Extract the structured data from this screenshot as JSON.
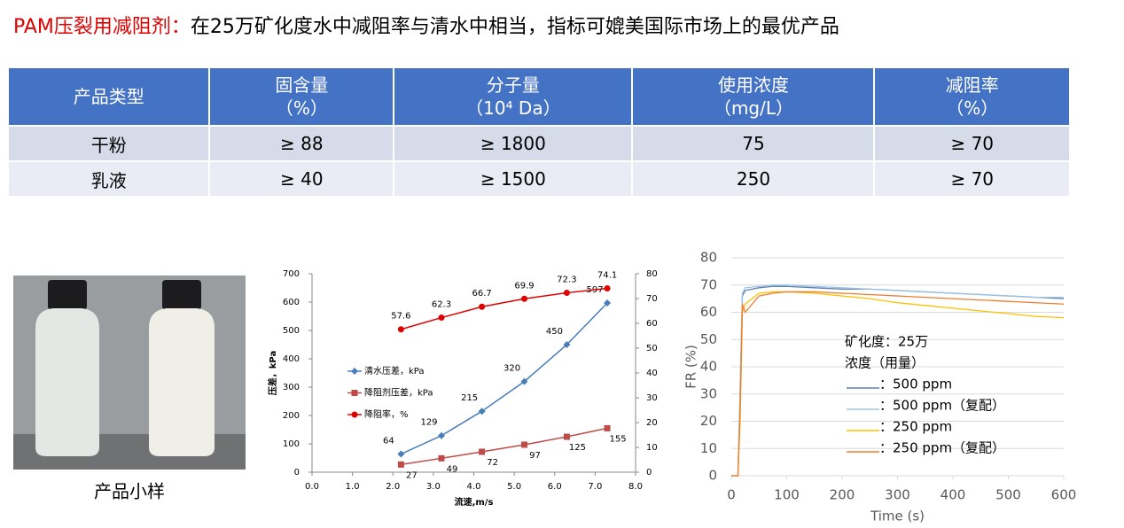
{
  "title": {
    "highlight": "PAM压裂用减阻剂：",
    "text": "在25万矿化度水中减阻率与清水中相当，指标可媲美国际市场上的最优产品"
  },
  "table": {
    "header": [
      [
        "产品类型"
      ],
      [
        "固含量",
        "（%）"
      ],
      [
        "分子量",
        "（10⁴ Da）"
      ],
      [
        "使用浓度",
        "（mg/L）"
      ],
      [
        "减阻率",
        "（%）"
      ]
    ],
    "rows": [
      [
        "干粉",
        "≥ 88",
        "≥ 1800",
        "75",
        "≥ 70"
      ],
      [
        "乳液",
        "≥ 40",
        "≥ 1500",
        "250",
        "≥ 70"
      ]
    ]
  },
  "photo": {
    "caption": "产品小样"
  },
  "chart_data": [
    {
      "type": "line",
      "xlabel": "流速,m/s",
      "ylabel": "压差，kPa",
      "x": [
        2.2,
        3.2,
        4.2,
        5.25,
        6.3,
        7.3
      ],
      "xlim": [
        0,
        8
      ],
      "xticks": [
        {
          "value": 0,
          "label": "0.0"
        },
        {
          "value": 1,
          "label": "1.0"
        },
        {
          "value": 2,
          "label": "2.0"
        },
        {
          "value": 3,
          "label": "3.0"
        },
        {
          "value": 4,
          "label": "4.0"
        },
        {
          "value": 5,
          "label": "5.0"
        },
        {
          "value": 6,
          "label": "6.0"
        },
        {
          "value": 7,
          "label": "7.0"
        },
        {
          "value": 8,
          "label": "8.0"
        }
      ],
      "ylim": [
        0,
        700
      ],
      "yticks": [
        0,
        100,
        200,
        300,
        400,
        500,
        600,
        700
      ],
      "y2lim": [
        0,
        80
      ],
      "y2ticks": [
        0,
        10,
        20,
        30,
        40,
        50,
        60,
        70,
        80
      ],
      "grid": false,
      "series": [
        {
          "name": "清水压差，kPa",
          "color": "#4a7ebb",
          "marker": "diamond",
          "values": [
            64,
            129,
            215,
            320,
            450,
            597
          ]
        },
        {
          "name": "降阻剂压差，kPa",
          "color": "#be4b48",
          "marker": "square",
          "values": [
            27,
            49,
            72,
            97,
            125,
            155
          ]
        },
        {
          "name": "降阻率，%",
          "color": "#e00000",
          "marker": "circle",
          "axis": "y2",
          "values": [
            57.6,
            62.3,
            66.7,
            69.9,
            72.3,
            74.1
          ]
        }
      ]
    },
    {
      "type": "line",
      "xlabel": "Time (s)",
      "ylabel": "FR (%)",
      "annotations": [
        "矿化度：25万",
        "浓度（用量）"
      ],
      "x": [
        0,
        12,
        16,
        20,
        25,
        50,
        75,
        100,
        150,
        200,
        250,
        300,
        350,
        400,
        450,
        500,
        550,
        600
      ],
      "xlim": [
        0,
        600
      ],
      "xticks": [
        0,
        100,
        200,
        300,
        400,
        500,
        600
      ],
      "ylim": [
        0,
        80
      ],
      "yticks": [
        0,
        10,
        20,
        30,
        40,
        50,
        60,
        70,
        80
      ],
      "grid": true,
      "series": [
        {
          "name": "：500 ppm",
          "color": "#5b7fb5",
          "values": [
            0,
            0,
            30,
            66,
            68,
            69,
            69.5,
            69.5,
            69,
            68.5,
            68.5,
            68,
            67.5,
            67,
            66.5,
            66,
            65.5,
            65
          ]
        },
        {
          "name": "：500 ppm（复配）",
          "color": "#9dc3e6",
          "values": [
            0,
            0,
            35,
            67,
            69,
            69.5,
            70,
            70,
            69.5,
            69,
            68.5,
            68,
            67.5,
            67,
            66.5,
            66,
            65.5,
            65.5
          ]
        },
        {
          "name": "：250 ppm",
          "color": "#ffc000",
          "values": [
            0,
            0,
            20,
            60,
            63,
            67,
            67.5,
            67.5,
            67,
            66,
            65,
            63.5,
            62.5,
            61.5,
            60.5,
            59.5,
            58.5,
            58
          ]
        },
        {
          "name": "：250 ppm（复配）",
          "color": "#ed7d31",
          "values": [
            0,
            0,
            25,
            63,
            60,
            66,
            67,
            67.5,
            67.5,
            67,
            66.5,
            66,
            65.5,
            65,
            64.5,
            64,
            63.5,
            63
          ]
        }
      ]
    }
  ]
}
